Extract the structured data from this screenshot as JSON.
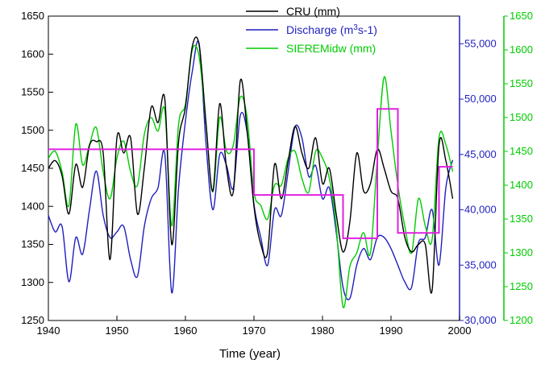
{
  "chart_data": {
    "type": "line",
    "title": "",
    "xlabel": "Time (year)",
    "xlim": [
      1940,
      2000
    ],
    "x_ticks": [
      "1940",
      "1950",
      "1960",
      "1970",
      "1980",
      "1990",
      "2000"
    ],
    "grid": false,
    "legend_position": "top-right",
    "axes": {
      "left": {
        "ylim": [
          1250,
          1650
        ],
        "ticks": [
          "1250",
          "1300",
          "1350",
          "1400",
          "1450",
          "1500",
          "1550",
          "1600",
          "1650"
        ],
        "color": "#000000"
      },
      "right1": {
        "ylim": [
          30000,
          57500
        ],
        "ticks": [
          "30,000",
          "35,000",
          "40,000",
          "45,000",
          "50,000",
          "55,000"
        ],
        "color": "#1f1fbf"
      },
      "right2": {
        "ylim": [
          1200,
          1650
        ],
        "ticks": [
          "1200",
          "1250",
          "1300",
          "1350",
          "1400",
          "1450",
          "1500",
          "1550",
          "1600",
          "1650"
        ],
        "color": "#00cc00"
      }
    },
    "series": [
      {
        "name": "CRU (mm)",
        "axis": "left",
        "color": "#000000",
        "x": [
          1940,
          1941,
          1942,
          1943,
          1944,
          1945,
          1946,
          1947,
          1948,
          1949,
          1950,
          1951,
          1952,
          1953,
          1954,
          1955,
          1956,
          1957,
          1958,
          1959,
          1960,
          1961,
          1962,
          1963,
          1964,
          1965,
          1966,
          1967,
          1968,
          1969,
          1970,
          1971,
          1972,
          1973,
          1974,
          1975,
          1976,
          1977,
          1978,
          1979,
          1980,
          1981,
          1982,
          1983,
          1984,
          1985,
          1986,
          1987,
          1988,
          1989,
          1990,
          1991,
          1992,
          1993,
          1994,
          1995,
          1996,
          1997,
          1998,
          1999
        ],
        "y": [
          1450,
          1460,
          1440,
          1390,
          1455,
          1425,
          1480,
          1485,
          1470,
          1330,
          1490,
          1470,
          1490,
          1390,
          1450,
          1530,
          1510,
          1540,
          1350,
          1485,
          1530,
          1610,
          1612,
          1510,
          1420,
          1535,
          1450,
          1420,
          1565,
          1500,
          1400,
          1350,
          1340,
          1455,
          1410,
          1460,
          1505,
          1470,
          1450,
          1490,
          1430,
          1450,
          1390,
          1340,
          1380,
          1470,
          1420,
          1430,
          1475,
          1450,
          1420,
          1410,
          1360,
          1340,
          1350,
          1350,
          1290,
          1480,
          1460,
          1410
        ]
      },
      {
        "name": "Discharge (m3s-1)",
        "name_base": "Discharge (m",
        "name_sup": "3",
        "name_tail": "s-1)",
        "axis": "right1",
        "color": "#1f1fbf",
        "x": [
          1940,
          1941,
          1942,
          1943,
          1944,
          1945,
          1946,
          1947,
          1948,
          1949,
          1950,
          1951,
          1952,
          1953,
          1954,
          1955,
          1956,
          1957,
          1958,
          1959,
          1960,
          1961,
          1962,
          1963,
          1964,
          1965,
          1966,
          1967,
          1968,
          1969,
          1970,
          1971,
          1972,
          1973,
          1974,
          1975,
          1976,
          1977,
          1978,
          1979,
          1980,
          1981,
          1982,
          1983,
          1984,
          1985,
          1986,
          1987,
          1988,
          1989,
          1990,
          1991,
          1992,
          1993,
          1994,
          1995,
          1996,
          1997,
          1998,
          1999
        ],
        "y": [
          39500,
          38000,
          38500,
          33500,
          37500,
          36000,
          40000,
          43500,
          39500,
          37500,
          38000,
          38500,
          35500,
          34000,
          38500,
          41000,
          42000,
          45000,
          32500,
          42000,
          48000,
          52500,
          55000,
          46000,
          40000,
          45000,
          44000,
          42000,
          48500,
          47000,
          40500,
          37500,
          35000,
          40000,
          39500,
          43500,
          47500,
          46500,
          43000,
          44000,
          41000,
          42000,
          38000,
          33000,
          32000,
          35000,
          36500,
          35500,
          37500,
          37500,
          36500,
          35000,
          33500,
          33000,
          37000,
          37500,
          40000,
          35000,
          42000,
          44500
        ]
      },
      {
        "name": "SIEREMidw (mm)",
        "axis": "right2",
        "color": "#00cc00",
        "x": [
          1940,
          1941,
          1942,
          1943,
          1944,
          1945,
          1946,
          1947,
          1948,
          1949,
          1950,
          1951,
          1952,
          1953,
          1954,
          1955,
          1956,
          1957,
          1958,
          1959,
          1960,
          1961,
          1962,
          1963,
          1964,
          1965,
          1966,
          1967,
          1968,
          1969,
          1970,
          1971,
          1972,
          1973,
          1974,
          1975,
          1976,
          1977,
          1978,
          1979,
          1980,
          1981,
          1982,
          1983,
          1984,
          1985,
          1986,
          1987,
          1988,
          1989,
          1990,
          1991,
          1992,
          1993,
          1994,
          1995,
          1996,
          1997,
          1998,
          1999
        ],
        "y": [
          1440,
          1450,
          1420,
          1370,
          1490,
          1430,
          1460,
          1485,
          1420,
          1380,
          1440,
          1465,
          1420,
          1400,
          1475,
          1500,
          1480,
          1510,
          1340,
          1490,
          1520,
          1600,
          1590,
          1490,
          1390,
          1500,
          1450,
          1460,
          1530,
          1500,
          1390,
          1370,
          1350,
          1400,
          1400,
          1440,
          1450,
          1410,
          1390,
          1450,
          1440,
          1410,
          1340,
          1220,
          1280,
          1300,
          1330,
          1300,
          1440,
          1560,
          1480,
          1400,
          1340,
          1300,
          1380,
          1340,
          1320,
          1470,
          1460,
          1420
        ]
      },
      {
        "name": "",
        "axis": "left",
        "color": "#e020e0",
        "step": true,
        "x": [
          1940,
          1970,
          1970,
          1982,
          1982,
          1983,
          1983,
          1987,
          1987,
          1988,
          1988,
          1990,
          1990,
          1991,
          1991,
          1996,
          1996,
          1997,
          1997,
          1999
        ],
        "y": [
          1475,
          1475,
          1415,
          1415,
          1415,
          1415,
          1358,
          1358,
          1358,
          1358,
          1528,
          1528,
          1528,
          1528,
          1365,
          1365,
          1365,
          1365,
          1452,
          1452
        ]
      }
    ]
  }
}
